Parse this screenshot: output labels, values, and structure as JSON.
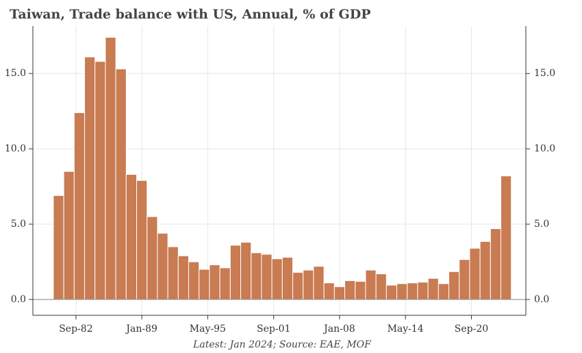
{
  "chart_data": {
    "type": "bar",
    "title": "Taiwan, Trade balance with US, Annual, % of GDP",
    "footnote": "Latest: Jan 2024; Source: EAE, MOF",
    "x": [
      1981,
      1982,
      1983,
      1984,
      1985,
      1986,
      1987,
      1988,
      1989,
      1990,
      1991,
      1992,
      1993,
      1994,
      1995,
      1996,
      1997,
      1998,
      1999,
      2000,
      2001,
      2002,
      2003,
      2004,
      2005,
      2006,
      2007,
      2008,
      2009,
      2010,
      2011,
      2012,
      2013,
      2014,
      2015,
      2016,
      2017,
      2018,
      2019,
      2020,
      2021,
      2022,
      2023,
      2024
    ],
    "values": [
      6.9,
      8.5,
      12.4,
      16.1,
      15.8,
      17.4,
      15.3,
      8.3,
      7.9,
      5.5,
      4.4,
      3.5,
      2.9,
      2.5,
      2.0,
      2.3,
      2.1,
      3.6,
      3.8,
      3.1,
      3.0,
      2.7,
      2.8,
      1.8,
      1.95,
      2.2,
      1.1,
      0.85,
      1.25,
      1.2,
      1.95,
      1.7,
      0.95,
      1.05,
      1.1,
      1.15,
      1.4,
      1.05,
      1.85,
      2.65,
      3.4,
      3.85,
      4.7,
      8.2
    ],
    "color": "#c97b52",
    "xlim": [
      1978.53,
      2025.9
    ],
    "xticks": [
      {
        "value": 1982.67,
        "label": "Sep-82"
      },
      {
        "value": 1989.0,
        "label": "Jan-89"
      },
      {
        "value": 1995.33,
        "label": "May-95"
      },
      {
        "value": 2001.67,
        "label": "Sep-01"
      },
      {
        "value": 2008.0,
        "label": "Jan-08"
      },
      {
        "value": 2014.33,
        "label": "May-14"
      },
      {
        "value": 2020.67,
        "label": "Sep-20"
      }
    ],
    "ylim": [
      -1.05,
      18.15
    ],
    "yticks": [
      {
        "value": 0,
        "label": "0.0"
      },
      {
        "value": 5,
        "label": "5.0"
      },
      {
        "value": 10,
        "label": "10.0"
      },
      {
        "value": 15,
        "label": "15.0"
      }
    ],
    "grid": true
  }
}
